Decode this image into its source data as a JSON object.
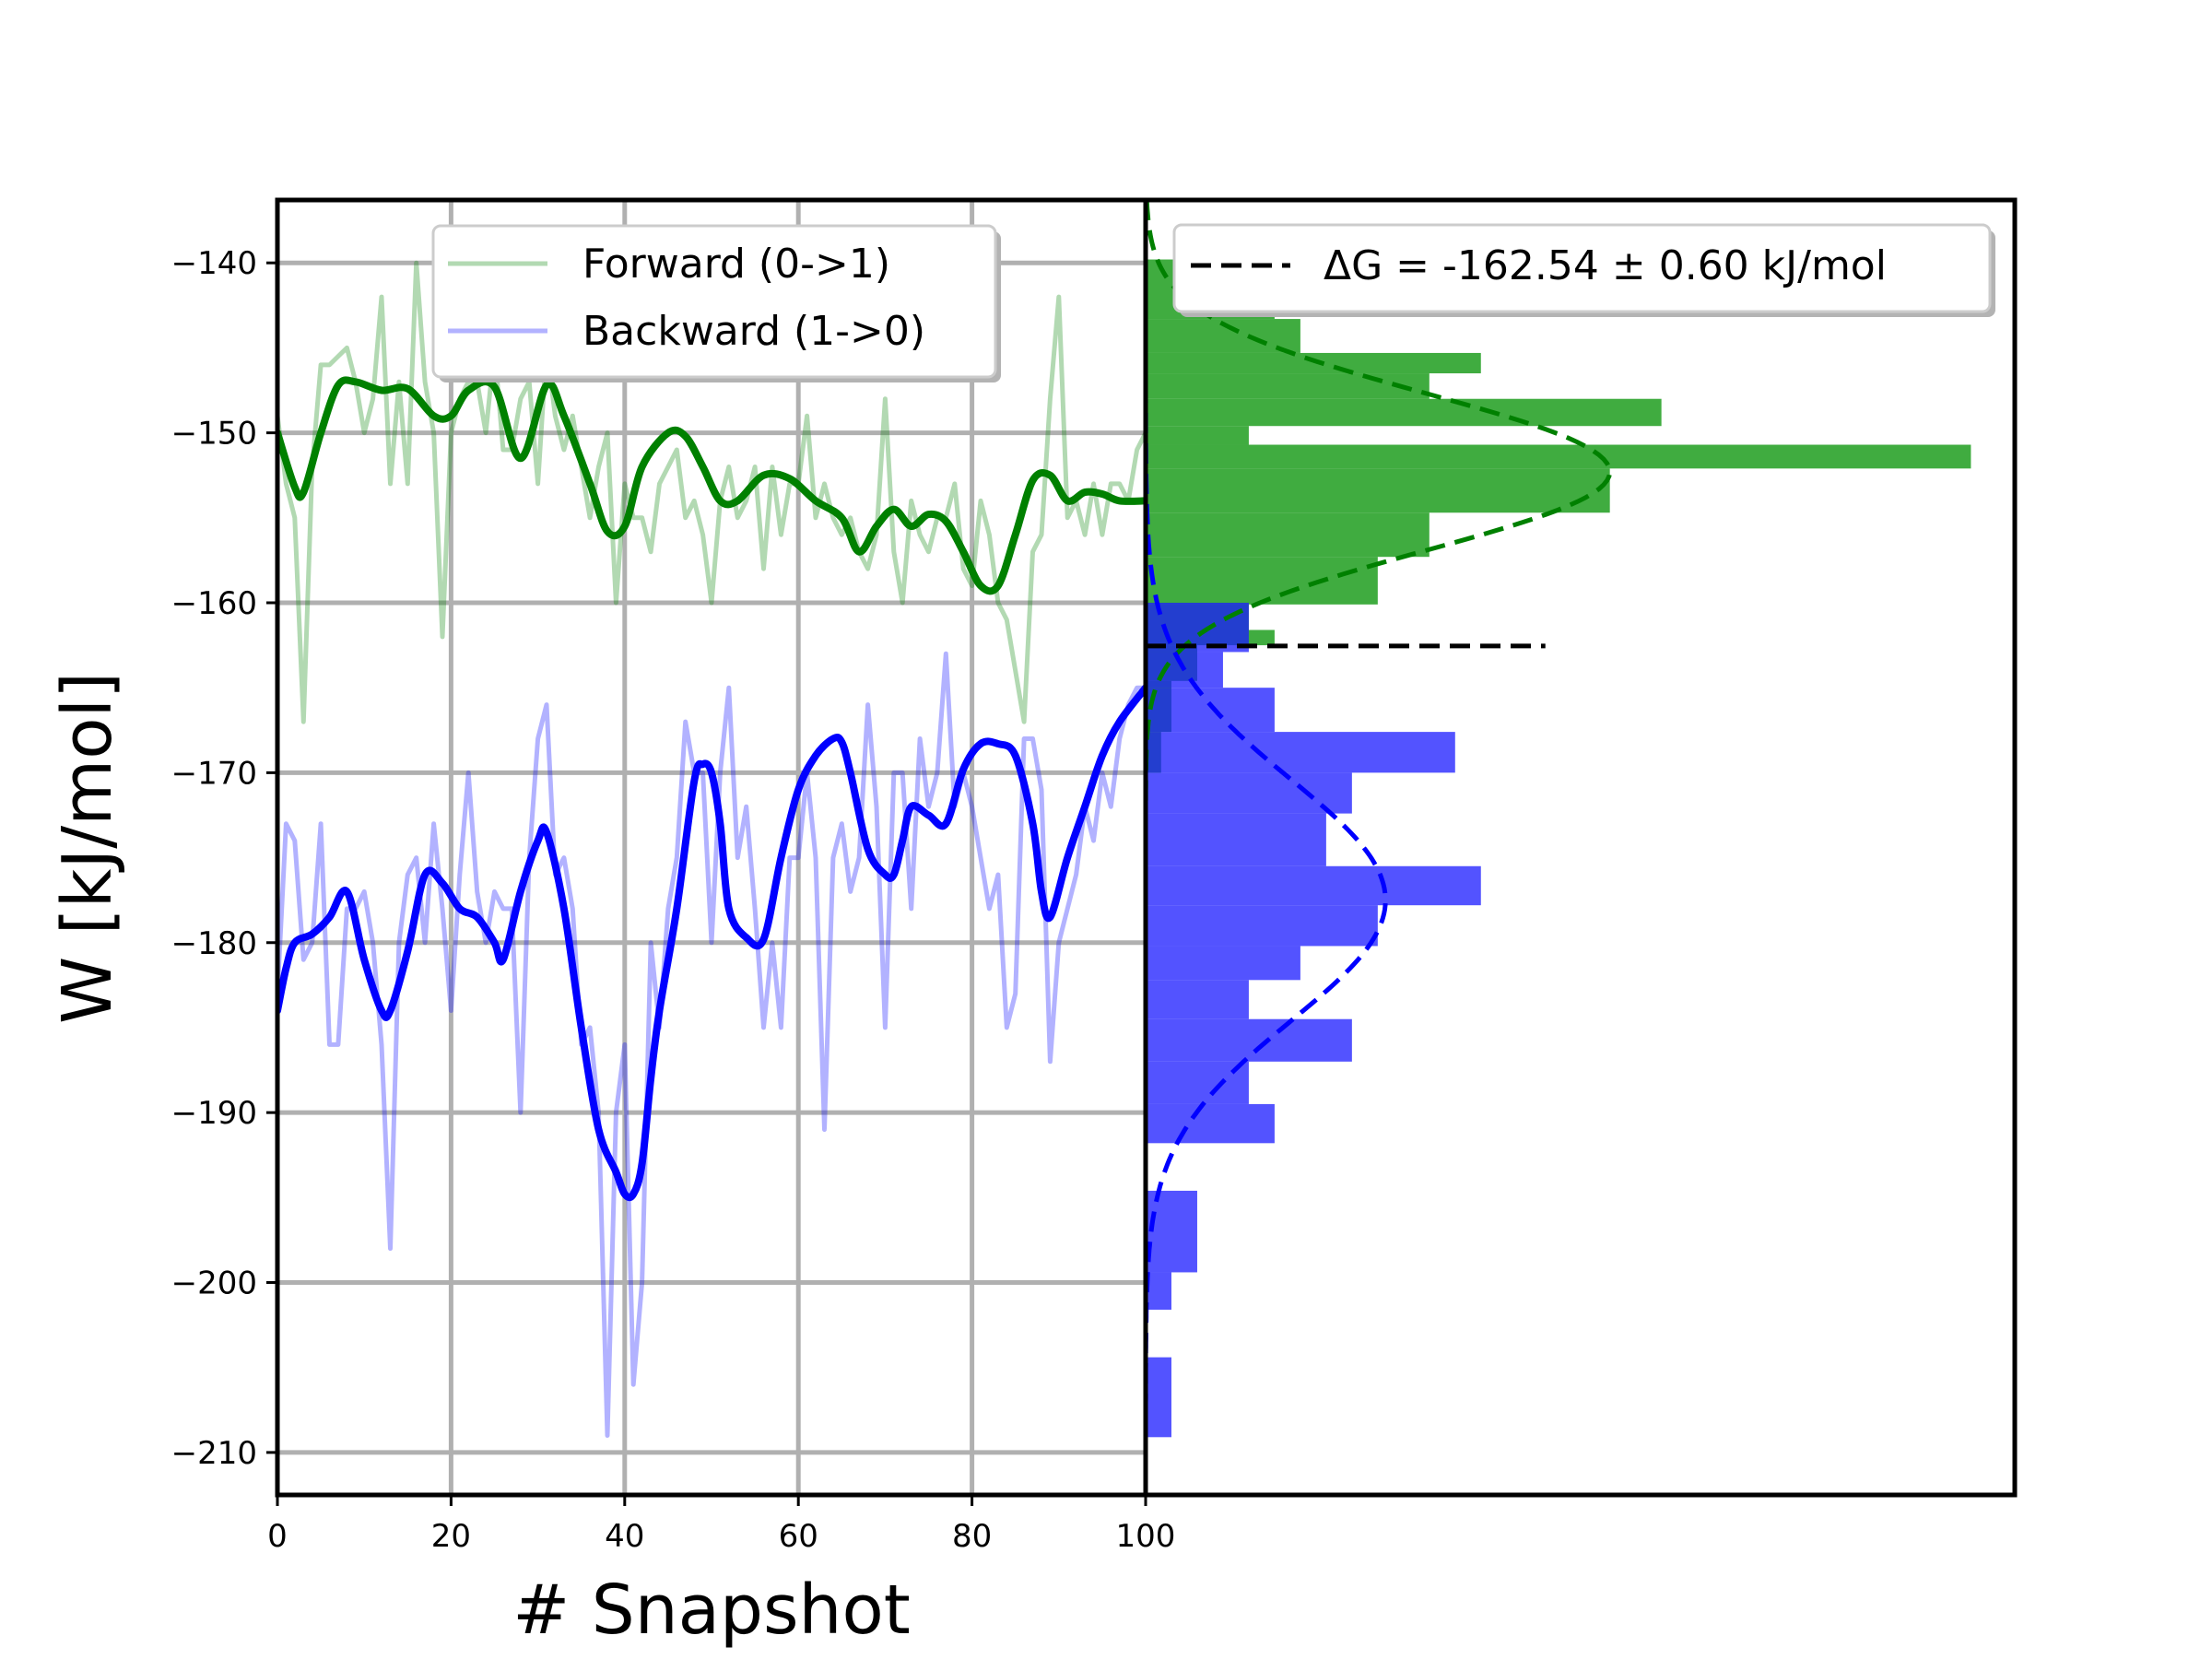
{
  "chart_data": [
    {
      "type": "line",
      "xlabel": "# Snapshot",
      "ylabel": "W [kJ/mol]",
      "xlim": [
        0,
        100
      ],
      "ylim": [
        -212.5,
        -136.3
      ],
      "xticks": [
        0,
        20,
        40,
        60,
        80,
        100
      ],
      "xtick_labels": [
        "0",
        "20",
        "40",
        "60",
        "80",
        "100"
      ],
      "yticks": [
        -140,
        -150,
        -160,
        -170,
        -180,
        -190,
        -200,
        -210
      ],
      "ytick_labels": [
        "−140",
        "−150",
        "−160",
        "−170",
        "−180",
        "−190",
        "−200",
        "−210"
      ],
      "grid": true,
      "legend_position": "top-center",
      "series": [
        {
          "name": "Forward (0->1)",
          "color": "#008000",
          "raw_x": [
            0,
            1,
            2,
            3,
            4,
            5,
            6,
            7,
            8,
            9,
            10,
            11,
            12,
            13,
            14,
            15,
            16,
            17,
            18,
            19,
            20,
            21,
            22,
            23,
            24,
            25,
            26,
            27,
            28,
            29,
            30,
            31,
            32,
            33,
            34,
            35,
            36,
            37,
            38,
            39,
            40,
            41,
            42,
            43,
            44,
            45,
            46,
            47,
            48,
            49,
            50,
            51,
            52,
            53,
            54,
            55,
            56,
            57,
            58,
            59,
            60,
            61,
            62,
            63,
            64,
            65,
            66,
            67,
            68,
            69,
            70,
            71,
            72,
            73,
            74,
            75,
            76,
            77,
            78,
            79,
            80,
            81,
            82,
            83,
            84,
            85,
            86,
            87,
            88,
            89,
            90,
            91,
            92,
            93,
            94,
            95,
            96,
            97,
            98,
            99,
            100
          ],
          "raw_y": [
            -149,
            -153,
            -155,
            -167,
            -152,
            -146,
            -146,
            -145.5,
            -145,
            -147,
            -150,
            -148,
            -142,
            -153,
            -147,
            -153,
            -140,
            -147,
            -150,
            -162,
            -150,
            -148,
            -147,
            -147,
            -150,
            -145,
            -151,
            -151,
            -148,
            -147,
            -153,
            -145,
            -149,
            -151,
            -149,
            -152,
            -155,
            -152,
            -150,
            -160,
            -153,
            -155,
            -155,
            -157,
            -153,
            -152,
            -151,
            -155,
            -154,
            -156,
            -160,
            -154,
            -152,
            -155,
            -154,
            -152,
            -158,
            -152,
            -156,
            -153,
            -153,
            -149,
            -155,
            -153,
            -155,
            -156,
            -155,
            -157,
            -158,
            -156,
            -148,
            -157,
            -160,
            -154,
            -156,
            -157,
            -155,
            -155,
            -153,
            -158,
            -159,
            -154,
            -156,
            -160,
            -161,
            -164,
            -167,
            -157,
            -156,
            -148,
            -142,
            -155,
            -154,
            -156,
            -153,
            -156,
            -153,
            -153,
            -154,
            -151,
            -150
          ],
          "smooth_x": [
            0,
            2,
            3,
            5,
            7,
            9,
            12,
            15,
            18,
            20,
            22,
            25,
            28,
            31,
            33,
            36,
            38,
            40,
            42,
            45,
            47,
            49,
            51,
            53,
            56,
            59,
            62,
            65,
            67,
            69,
            71,
            73,
            75,
            77,
            79,
            81,
            83,
            85,
            87,
            89,
            91,
            93,
            95,
            97,
            100
          ],
          "smooth_y": [
            -150,
            -153.2,
            -153.5,
            -150,
            -147.2,
            -147,
            -147.5,
            -147.4,
            -149,
            -149,
            -147.5,
            -147.3,
            -151.5,
            -147.2,
            -149,
            -153,
            -155.8,
            -155.5,
            -152,
            -150,
            -150.2,
            -152,
            -154,
            -154,
            -152.5,
            -152.7,
            -154,
            -155,
            -157,
            -155.5,
            -154.5,
            -155.5,
            -154.8,
            -155.2,
            -157,
            -159,
            -159,
            -156,
            -152.8,
            -152.5,
            -154,
            -153.5,
            -153.6,
            -154,
            -154
          ]
        },
        {
          "name": "Backward (1->0)",
          "color": "#0000ff",
          "raw_x": [
            0,
            1,
            2,
            3,
            4,
            5,
            6,
            7,
            8,
            9,
            10,
            11,
            12,
            13,
            14,
            15,
            16,
            17,
            18,
            19,
            20,
            21,
            22,
            23,
            24,
            25,
            26,
            27,
            28,
            29,
            30,
            31,
            32,
            33,
            34,
            35,
            36,
            37,
            38,
            39,
            40,
            41,
            42,
            43,
            44,
            45,
            46,
            47,
            48,
            49,
            50,
            51,
            52,
            53,
            54,
            55,
            56,
            57,
            58,
            59,
            60,
            61,
            62,
            63,
            64,
            65,
            66,
            67,
            68,
            69,
            70,
            71,
            72,
            73,
            74,
            75,
            76,
            77,
            78,
            79,
            80,
            81,
            82,
            83,
            84,
            85,
            86,
            87,
            88,
            89,
            90,
            91,
            92,
            93,
            94,
            95,
            96,
            97,
            98,
            99,
            100
          ],
          "raw_y": [
            -183,
            -173,
            -174,
            -181,
            -180,
            -173,
            -186,
            -186,
            -178,
            -178,
            -177,
            -180,
            -186,
            -198,
            -180,
            -176,
            -175,
            -180,
            -173,
            -178,
            -184,
            -176,
            -170,
            -177,
            -180,
            -177,
            -178,
            -178,
            -190,
            -175,
            -168,
            -166,
            -176,
            -175,
            -178,
            -186,
            -185,
            -190,
            -209,
            -190,
            -186,
            -206,
            -200,
            -180,
            -185,
            -178,
            -175,
            -167,
            -170,
            -170,
            -180,
            -170,
            -165,
            -175,
            -172,
            -178,
            -185,
            -180,
            -185,
            -175,
            -175,
            -170,
            -175,
            -191,
            -175,
            -173,
            -177,
            -175,
            -166,
            -172,
            -185,
            -170,
            -170,
            -178,
            -168,
            -172,
            -170,
            -163,
            -172,
            -170,
            -172,
            -175,
            -178,
            -176,
            -185,
            -183,
            -168,
            -168,
            -171,
            -187,
            -180,
            -178,
            -176,
            -172,
            -174,
            -170,
            -172,
            -168,
            -166,
            -165,
            -165
          ],
          "smooth_x": [
            0,
            1,
            2,
            4,
            6,
            8,
            10,
            12,
            13,
            15,
            17,
            19,
            21,
            23,
            25,
            26,
            28,
            30,
            31,
            33,
            35,
            37,
            39,
            40,
            41,
            42,
            43,
            44,
            46,
            48,
            49,
            50,
            51,
            52,
            54,
            56,
            58,
            60,
            62,
            64,
            65,
            66,
            68,
            70,
            71,
            72,
            73,
            75,
            77,
            79,
            81,
            83,
            85,
            87,
            88,
            89,
            91,
            93,
            95,
            97,
            100
          ],
          "smooth_y": [
            -184,
            -181.5,
            -180,
            -179.5,
            -178.5,
            -177,
            -181,
            -184,
            -184,
            -180.5,
            -176,
            -176.5,
            -178,
            -178.5,
            -180,
            -181,
            -177,
            -174,
            -173.5,
            -178,
            -185,
            -191,
            -193.5,
            -194.8,
            -194.8,
            -193,
            -188,
            -184,
            -178,
            -170.5,
            -169.5,
            -170,
            -173,
            -178,
            -179.7,
            -179.8,
            -175,
            -171,
            -169,
            -168,
            -168.2,
            -170,
            -174.5,
            -176,
            -176,
            -174,
            -172,
            -172.5,
            -173,
            -169.8,
            -168.3,
            -168.3,
            -169,
            -173,
            -177,
            -178.5,
            -175,
            -172,
            -169,
            -167,
            -165
          ]
        }
      ]
    },
    {
      "type": "bar",
      "orientation": "horizontal",
      "ylim": [
        -212.5,
        -136.3
      ],
      "legend_position": "top-center",
      "histograms": [
        {
          "color": "#009000",
          "bins": [
            {
              "y0": -139.8,
              "y1": -143.3,
              "count": 5
            },
            {
              "y0": -143.3,
              "y1": -145.3,
              "count": 6
            },
            {
              "y0": -145.3,
              "y1": -146.5,
              "count": 13
            },
            {
              "y0": -146.5,
              "y1": -148.0,
              "count": 11
            },
            {
              "y0": -148.0,
              "y1": -149.6,
              "count": 20
            },
            {
              "y0": -149.6,
              "y1": -150.7,
              "count": 4
            },
            {
              "y0": -150.7,
              "y1": -152.1,
              "count": 32
            },
            {
              "y0": -152.1,
              "y1": -154.7,
              "count": 18
            },
            {
              "y0": -154.7,
              "y1": -157.3,
              "count": 11
            },
            {
              "y0": -157.3,
              "y1": -160.1,
              "count": 9
            },
            {
              "y0": -160.1,
              "y1": -161.6,
              "count": 4
            },
            {
              "y0": -161.6,
              "y1": -162.5,
              "count": 5
            },
            {
              "y0": -162.5,
              "y1": -164.6,
              "count": 2
            },
            {
              "y0": -164.6,
              "y1": -167.6,
              "count": 1
            },
            {
              "y0": -167.6,
              "y1": -170.0,
              "count": 0.6
            }
          ]
        },
        {
          "color": "#1a1aff",
          "bins": [
            {
              "y0": -160.0,
              "y1": -162.9,
              "count": 4
            },
            {
              "y0": -162.9,
              "y1": -165.0,
              "count": 3
            },
            {
              "y0": -165.0,
              "y1": -167.6,
              "count": 5
            },
            {
              "y0": -167.6,
              "y1": -170.0,
              "count": 12
            },
            {
              "y0": -170.0,
              "y1": -172.4,
              "count": 8
            },
            {
              "y0": -172.4,
              "y1": -175.5,
              "count": 7
            },
            {
              "y0": -175.5,
              "y1": -177.8,
              "count": 13
            },
            {
              "y0": -177.8,
              "y1": -180.2,
              "count": 9
            },
            {
              "y0": -180.2,
              "y1": -182.2,
              "count": 6
            },
            {
              "y0": -182.2,
              "y1": -184.5,
              "count": 4
            },
            {
              "y0": -184.5,
              "y1": -187.0,
              "count": 8
            },
            {
              "y0": -187.0,
              "y1": -189.5,
              "count": 4
            },
            {
              "y0": -189.5,
              "y1": -191.8,
              "count": 5
            },
            {
              "y0": -194.6,
              "y1": -199.4,
              "count": 2
            },
            {
              "y0": -199.4,
              "y1": -201.6,
              "count": 1
            },
            {
              "y0": -204.4,
              "y1": -209.1,
              "count": 1
            }
          ]
        }
      ],
      "gaussian_fits": [
        {
          "color": "#008000",
          "mean": -152.3,
          "sd": 4.6,
          "peak_count": 18
        },
        {
          "color": "#0000ff",
          "mean": -177.5,
          "sd": 7.1,
          "peak_count": 9.3
        }
      ],
      "reference_line": {
        "label": "ΔG = -162.54 ± 0.60 kJ/mol",
        "value": -162.54,
        "color": "#000000",
        "style": "dashed"
      },
      "count_max": 33.7
    }
  ]
}
